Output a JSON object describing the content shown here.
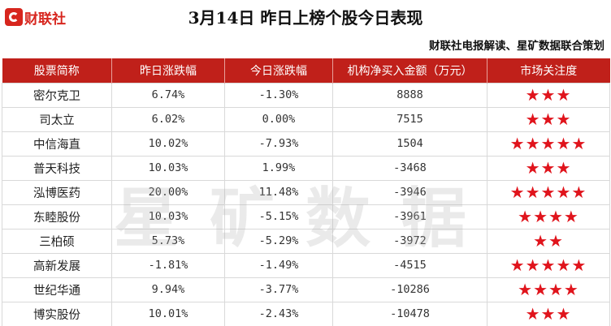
{
  "logo": {
    "text": "财联社"
  },
  "title": "3月14日  昨日上榜个股今日表现",
  "subtitle": "财联社电报解读、星矿数据联合策划",
  "watermark": "星矿数据",
  "table": {
    "headers": [
      "股票简称",
      "昨日涨跌幅",
      "今日涨跌幅",
      "机构净买入金额（万元）",
      "市场关注度"
    ],
    "rows": [
      {
        "name": "密尔克卫",
        "yesterday": "6.74%",
        "today": "-1.30%",
        "net_buy": "8888",
        "stars": "★★★"
      },
      {
        "name": "司太立",
        "yesterday": "6.02%",
        "today": "0.00%",
        "net_buy": "7515",
        "stars": "★★★"
      },
      {
        "name": "中信海直",
        "yesterday": "10.02%",
        "today": "-7.93%",
        "net_buy": "1504",
        "stars": "★★★★★"
      },
      {
        "name": "普天科技",
        "yesterday": "10.03%",
        "today": "1.99%",
        "net_buy": "-3468",
        "stars": "★★★"
      },
      {
        "name": "泓博医药",
        "yesterday": "20.00%",
        "today": "11.48%",
        "net_buy": "-3946",
        "stars": "★★★★★"
      },
      {
        "name": "东睦股份",
        "yesterday": "10.03%",
        "today": "-5.15%",
        "net_buy": "-3961",
        "stars": "★★★★"
      },
      {
        "name": "三柏硕",
        "yesterday": "5.73%",
        "today": "-5.29%",
        "net_buy": "-3972",
        "stars": "★★"
      },
      {
        "name": "高新发展",
        "yesterday": "-1.81%",
        "today": "-1.49%",
        "net_buy": "-4515",
        "stars": "★★★★★"
      },
      {
        "name": "世纪华通",
        "yesterday": "9.94%",
        "today": "-3.77%",
        "net_buy": "-10286",
        "stars": "★★★★"
      },
      {
        "name": "博实股份",
        "yesterday": "10.01%",
        "today": "-2.43%",
        "net_buy": "-10478",
        "stars": "★★★"
      }
    ]
  },
  "colors": {
    "accent": "#c0201a",
    "star": "#e0141c"
  }
}
